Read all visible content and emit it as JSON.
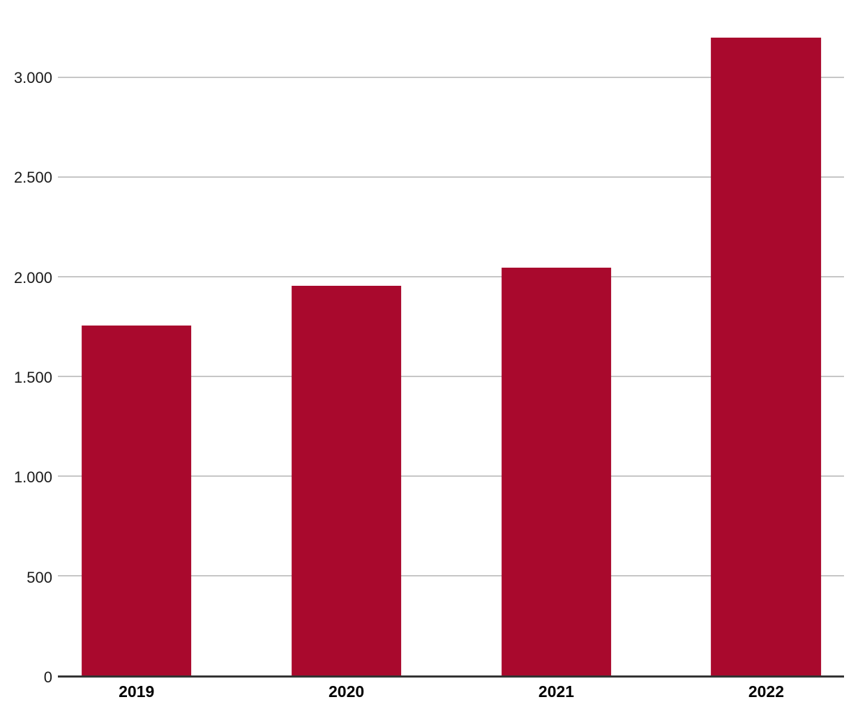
{
  "chart_data": {
    "type": "bar",
    "title": "",
    "categories": [
      "2019",
      "2020",
      "2021",
      "2022"
    ],
    "values": [
      1755,
      1955,
      2045,
      3200
    ],
    "yticks": [
      {
        "value": 0,
        "label": "0"
      },
      {
        "value": 500,
        "label": "500"
      },
      {
        "value": 1000,
        "label": "1.000"
      },
      {
        "value": 1500,
        "label": "1.500"
      },
      {
        "value": 2000,
        "label": "2.000"
      },
      {
        "value": 2500,
        "label": "2.500"
      },
      {
        "value": 3000,
        "label": "3.000"
      }
    ],
    "ylim": [
      0,
      3390
    ],
    "xlabel": "",
    "ylabel": "",
    "grid": "horizontal",
    "legend": "none",
    "bar_color": "#A9092D",
    "gridline_color": "#C6C6C6",
    "axis_line_color": "#333333",
    "bar_width_pct": 14.0,
    "first_bar_center_pct": 10.0,
    "last_bar_center_pct": 90.1
  }
}
